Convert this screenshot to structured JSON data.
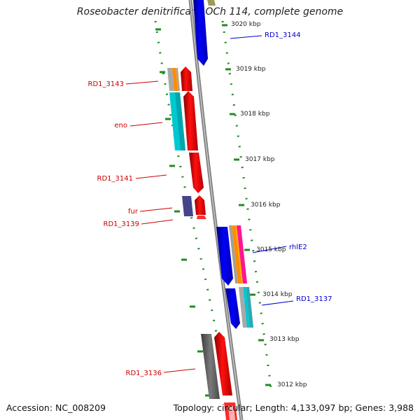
{
  "title": "Roseobacter denitrificans OCh 114, complete genome",
  "footer": {
    "accession": "Accession: NC_008209",
    "summary": "Topology: circular; Length: 4,133,097 bp; Genes: 3,988"
  },
  "scale_labels": [
    {
      "name": "3020kbp",
      "text": "3020 kbp"
    },
    {
      "name": "3019kbp",
      "text": "3019 kbp"
    },
    {
      "name": "3018kbp",
      "text": "3018 kbp"
    },
    {
      "name": "3017kbp",
      "text": "3017 kbp"
    },
    {
      "name": "3016kbp",
      "text": "3016 kbp"
    },
    {
      "name": "3015kbp",
      "text": "3015 kbp"
    },
    {
      "name": "3014kbp",
      "text": "3014 kbp"
    },
    {
      "name": "3013kbp",
      "text": "3013 kbp"
    },
    {
      "name": "3012kbp",
      "text": "3012 kbp"
    }
  ],
  "gene_labels": [
    {
      "name": "rd1-3144",
      "text": "RD1_3144",
      "color": "#0000cc"
    },
    {
      "name": "rd1-3143",
      "text": "RD1_3143",
      "color": "#cc0000"
    },
    {
      "name": "eno",
      "text": "eno",
      "color": "#cc0000"
    },
    {
      "name": "rd1-3141",
      "text": "RD1_3141",
      "color": "#cc0000"
    },
    {
      "name": "fur",
      "text": "fur",
      "color": "#cc0000"
    },
    {
      "name": "rd1-3139",
      "text": "RD1_3139",
      "color": "#cc0000"
    },
    {
      "name": "rhie2",
      "text": "rhlE2",
      "color": "#0000cc"
    },
    {
      "name": "rd1-3137",
      "text": "RD1_3137",
      "color": "#0000cc"
    },
    {
      "name": "rd1-3136",
      "text": "RD1_3136",
      "color": "#cc0000"
    }
  ],
  "colors": {
    "forward_cds": "#ee0000",
    "reverse_cds": "#0000ee",
    "backbone": "#808080",
    "gc_dots": "#228b22"
  }
}
